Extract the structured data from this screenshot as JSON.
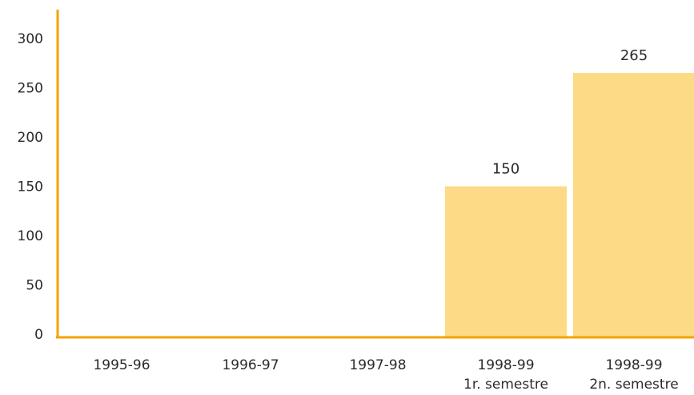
{
  "chart_data": {
    "type": "bar",
    "categories": [
      [
        "1995-96"
      ],
      [
        "1996-97"
      ],
      [
        "1997-98"
      ],
      [
        "1998-99",
        "1r. semestre"
      ],
      [
        "1998-99",
        "2n. semestre"
      ]
    ],
    "values": [
      0,
      0,
      0,
      150,
      265
    ],
    "data_labels": [
      "",
      "",
      "",
      "150",
      "265"
    ],
    "y_ticks": [
      "0",
      "50",
      "100",
      "150",
      "200",
      "250",
      "300"
    ],
    "ylim": [
      0,
      300
    ],
    "grid": false,
    "legend": "none",
    "colors": {
      "bar": "#fddb86",
      "axis": "#f4a300"
    }
  }
}
